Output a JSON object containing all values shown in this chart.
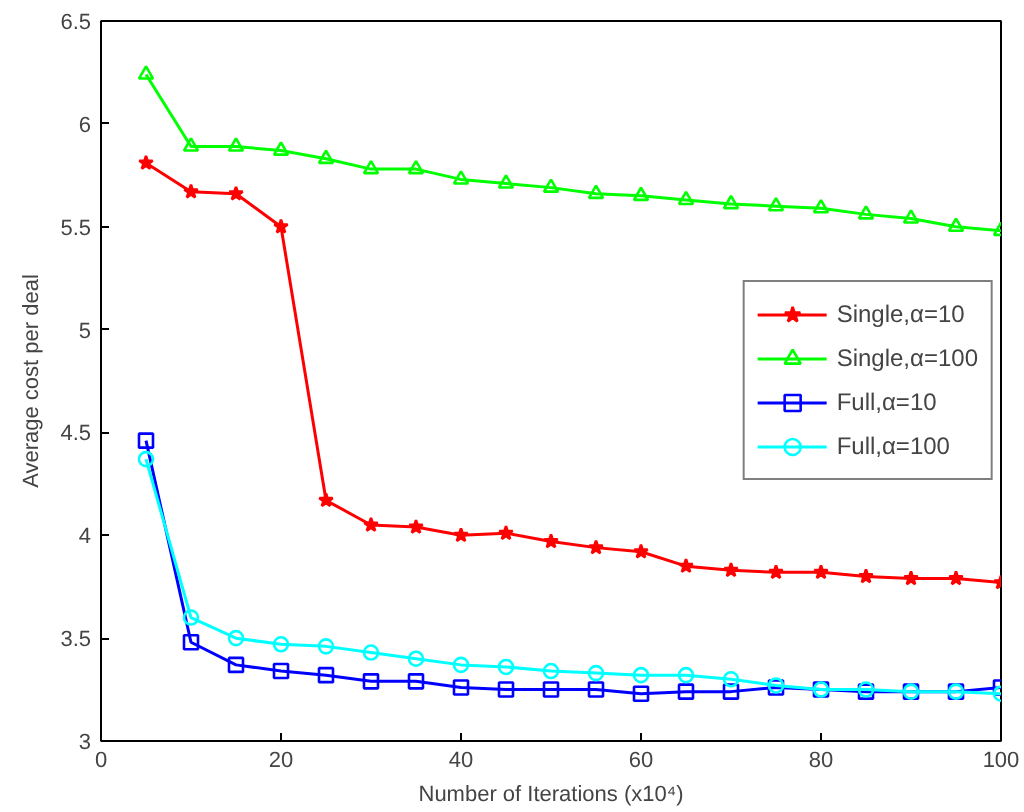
{
  "chart_data": {
    "type": "line",
    "xlabel": "Number of Iterations (x10⁴)",
    "ylabel": "Average cost per deal",
    "x": [
      5,
      10,
      15,
      20,
      25,
      30,
      35,
      40,
      45,
      50,
      55,
      60,
      65,
      70,
      75,
      80,
      85,
      90,
      95,
      100
    ],
    "xlim": [
      0,
      100
    ],
    "xticks": [
      0,
      20,
      40,
      60,
      80,
      100
    ],
    "ylim": [
      3,
      6.5
    ],
    "yticks": [
      3,
      3.5,
      4,
      4.5,
      5,
      5.5,
      6,
      6.5
    ],
    "grid": false,
    "legend": "right",
    "series": [
      {
        "name": "Single,α=10",
        "color": "#ff0000",
        "marker": "star",
        "values": [
          5.81,
          5.67,
          5.66,
          5.5,
          4.17,
          4.05,
          4.04,
          4.0,
          4.01,
          3.97,
          3.94,
          3.92,
          3.85,
          3.83,
          3.82,
          3.82,
          3.8,
          3.79,
          3.79,
          3.77
        ]
      },
      {
        "name": "Single,α=100",
        "color": "#00ff00",
        "marker": "triangle",
        "values": [
          6.24,
          5.89,
          5.89,
          5.87,
          5.83,
          5.78,
          5.78,
          5.73,
          5.71,
          5.69,
          5.66,
          5.65,
          5.63,
          5.61,
          5.6,
          5.59,
          5.56,
          5.54,
          5.5,
          5.48
        ]
      },
      {
        "name": "Full,α=10",
        "color": "#0000ff",
        "marker": "square",
        "values": [
          4.46,
          3.48,
          3.37,
          3.34,
          3.32,
          3.29,
          3.29,
          3.26,
          3.25,
          3.25,
          3.25,
          3.23,
          3.24,
          3.24,
          3.26,
          3.25,
          3.24,
          3.24,
          3.24,
          3.26
        ]
      },
      {
        "name": "Full,α=100",
        "color": "#00ffff",
        "marker": "circle",
        "values": [
          4.37,
          3.6,
          3.5,
          3.47,
          3.46,
          3.43,
          3.4,
          3.37,
          3.36,
          3.34,
          3.33,
          3.32,
          3.32,
          3.3,
          3.27,
          3.25,
          3.25,
          3.24,
          3.24,
          3.23
        ]
      }
    ]
  }
}
